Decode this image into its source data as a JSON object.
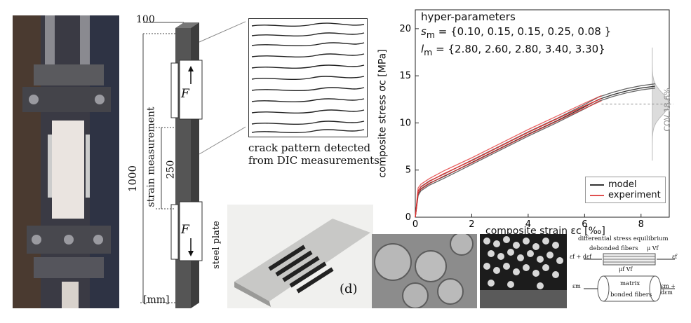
{
  "specimen": {
    "dim_top": "100",
    "dim_height": "1000",
    "dim_gauge": "250",
    "strain_label": "strain measurement",
    "force_top": "F",
    "force_bottom": "F",
    "plate_label": "steel plate",
    "unit_label": "[mm]"
  },
  "crack": {
    "caption_line1": "crack pattern detected",
    "caption_line2": "from DIC measurements"
  },
  "textile_label": "(d)",
  "hyper": {
    "title": "hyper-parameters",
    "s_label": "s",
    "s_sub": "m",
    "s_values": "= {0.10, 0.15, 0.15, 0.25, 0.08 }",
    "l_label": "l",
    "l_sub": "m",
    "l_values": "= {2.80, 2.60, 2.80, 3.40, 3.30}"
  },
  "cov_label": "COV 18.6%",
  "micro": {
    "title": "differential stress equilibrium",
    "debonded": "debonded fibers",
    "matrix": "matrix",
    "bonded": "bonded fibers",
    "eps_f_left": "εf + dεf",
    "eps_f_right": "εf",
    "eps_m_left": "εm",
    "eps_m_right": "εm + dεm",
    "mu_f": "μf Vf",
    "mu_v": "μ Vf"
  },
  "chart_data": {
    "type": "line",
    "xlabel": "composite strain εc [‰]",
    "ylabel": "composite stress σc [MPa]",
    "xlim": [
      0,
      9
    ],
    "ylim": [
      0,
      22
    ],
    "xticks": [
      0,
      2,
      4,
      6,
      8
    ],
    "yticks": [
      0,
      5,
      10,
      15,
      20
    ],
    "grid": false,
    "legend_position": "bottom-right",
    "series": [
      {
        "name": "model",
        "color": "#333333",
        "x": [
          0,
          0.1,
          0.2,
          0.5,
          1.0,
          2.0,
          3.0,
          4.0,
          5.0,
          6.0,
          6.5,
          7.0,
          7.5,
          8.0,
          8.5
        ],
        "y": [
          0,
          2.5,
          3.0,
          3.6,
          4.3,
          5.8,
          7.3,
          8.8,
          10.2,
          11.7,
          12.5,
          13.0,
          13.4,
          13.7,
          13.9
        ]
      },
      {
        "name": "experiment",
        "color": "#e03030",
        "x": [
          0,
          0.1,
          0.2,
          0.5,
          1.0,
          2.0,
          3.0,
          4.0,
          5.0,
          6.0,
          6.6
        ],
        "y": [
          0,
          2.8,
          3.2,
          3.8,
          4.6,
          6.0,
          7.5,
          9.0,
          10.4,
          11.8,
          12.6
        ]
      }
    ],
    "cov_mean": 12.0,
    "cov_x": 8.4
  }
}
